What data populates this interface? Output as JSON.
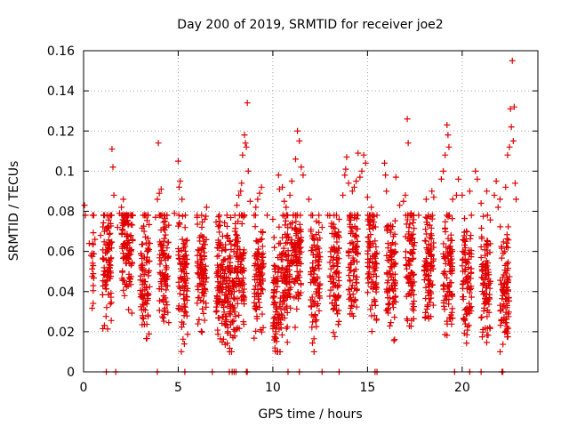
{
  "chart_data": {
    "type": "scatter",
    "title": "Day 200 of 2019, SRMTID for receiver joe2",
    "xlabel": "GPS time / hours",
    "ylabel": "SRMTID / TECUs",
    "xlim": [
      0,
      24
    ],
    "ylim": [
      0,
      0.16
    ],
    "xticks": [
      0,
      5,
      10,
      15,
      20
    ],
    "yticks": [
      0,
      0.02,
      0.04,
      0.06,
      0.08,
      0.1,
      0.12,
      0.14,
      0.16
    ],
    "xtick_labels": [
      "0",
      "5",
      "10",
      "15",
      "20"
    ],
    "ytick_labels": [
      "0",
      "0.02",
      "0.04",
      "0.06",
      "0.08",
      "0.1",
      "0.12",
      "0.14",
      "0.16"
    ],
    "grid": true,
    "marker": "+",
    "color": "#e00000",
    "series": [
      {
        "name": "SRMTID",
        "points": [
          [
            0.05,
            0.083
          ],
          [
            0.1,
            0.078
          ],
          [
            0.3,
            0.064
          ],
          [
            0.4,
            0.058
          ],
          [
            0.6,
            0.066
          ],
          [
            0.9,
            0.068
          ],
          [
            1.1,
            0.07
          ],
          [
            1.4,
            0.069
          ],
          [
            1.5,
            0.111
          ],
          [
            1.55,
            0.102
          ],
          [
            1.6,
            0.088
          ],
          [
            1.8,
            0.072
          ],
          [
            1.9,
            0.079
          ],
          [
            2.0,
            0.082
          ],
          [
            2.1,
            0.086
          ],
          [
            2.5,
            0.068
          ],
          [
            3.2,
            0.07
          ],
          [
            3.5,
            0.064
          ],
          [
            3.8,
            0.077
          ],
          [
            3.9,
            0.086
          ],
          [
            3.95,
            0.114
          ],
          [
            4.0,
            0.089
          ],
          [
            4.1,
            0.091
          ],
          [
            4.3,
            0.075
          ],
          [
            4.8,
            0.079
          ],
          [
            5.0,
            0.105
          ],
          [
            5.05,
            0.092
          ],
          [
            5.1,
            0.095
          ],
          [
            5.2,
            0.086
          ],
          [
            6.0,
            0.077
          ],
          [
            6.4,
            0.076
          ],
          [
            6.5,
            0.082
          ],
          [
            7.2,
            0.075
          ],
          [
            7.6,
            0.068
          ],
          [
            8.0,
            0.07
          ],
          [
            8.1,
            0.083
          ],
          [
            8.2,
            0.088
          ],
          [
            8.3,
            0.09
          ],
          [
            8.35,
            0.094
          ],
          [
            8.4,
            0.108
          ],
          [
            8.5,
            0.118
          ],
          [
            8.55,
            0.114
          ],
          [
            8.6,
            0.112
          ],
          [
            8.65,
            0.134
          ],
          [
            8.7,
            0.1
          ],
          [
            8.8,
            0.085
          ],
          [
            9.1,
            0.082
          ],
          [
            9.2,
            0.086
          ],
          [
            9.3,
            0.089
          ],
          [
            9.4,
            0.092
          ],
          [
            9.7,
            0.078
          ],
          [
            10.0,
            0.076
          ],
          [
            10.3,
            0.098
          ],
          [
            10.35,
            0.091
          ],
          [
            10.5,
            0.092
          ],
          [
            10.6,
            0.085
          ],
          [
            10.7,
            0.082
          ],
          [
            10.9,
            0.088
          ],
          [
            11.0,
            0.095
          ],
          [
            11.2,
            0.106
          ],
          [
            11.3,
            0.12
          ],
          [
            11.4,
            0.115
          ],
          [
            11.5,
            0.102
          ],
          [
            11.6,
            0.098
          ],
          [
            11.9,
            0.086
          ],
          [
            12.3,
            0.075
          ],
          [
            12.6,
            0.072
          ],
          [
            12.9,
            0.078
          ],
          [
            13.1,
            0.074
          ],
          [
            13.5,
            0.076
          ],
          [
            13.7,
            0.088
          ],
          [
            13.8,
            0.098
          ],
          [
            13.85,
            0.101
          ],
          [
            13.9,
            0.107
          ],
          [
            14.0,
            0.094
          ],
          [
            14.2,
            0.09
          ],
          [
            14.3,
            0.092
          ],
          [
            14.4,
            0.095
          ],
          [
            14.5,
            0.109
          ],
          [
            14.6,
            0.097
          ],
          [
            14.7,
            0.1
          ],
          [
            14.8,
            0.108
          ],
          [
            14.9,
            0.104
          ],
          [
            15.0,
            0.087
          ],
          [
            15.2,
            0.082
          ],
          [
            15.5,
            0.078
          ],
          [
            15.9,
            0.104
          ],
          [
            15.95,
            0.098
          ],
          [
            16.0,
            0.09
          ],
          [
            16.5,
            0.097
          ],
          [
            16.7,
            0.083
          ],
          [
            16.9,
            0.085
          ],
          [
            17.0,
            0.088
          ],
          [
            17.1,
            0.126
          ],
          [
            17.15,
            0.114
          ],
          [
            17.3,
            0.079
          ],
          [
            17.7,
            0.078
          ],
          [
            18.1,
            0.086
          ],
          [
            18.4,
            0.09
          ],
          [
            18.5,
            0.087
          ],
          [
            18.9,
            0.096
          ],
          [
            19.0,
            0.1
          ],
          [
            19.1,
            0.108
          ],
          [
            19.2,
            0.123
          ],
          [
            19.25,
            0.118
          ],
          [
            19.3,
            0.112
          ],
          [
            19.5,
            0.086
          ],
          [
            19.7,
            0.088
          ],
          [
            19.8,
            0.096
          ],
          [
            20.0,
            0.088
          ],
          [
            20.4,
            0.09
          ],
          [
            20.7,
            0.1
          ],
          [
            20.8,
            0.096
          ],
          [
            21.0,
            0.084
          ],
          [
            21.3,
            0.09
          ],
          [
            21.7,
            0.088
          ],
          [
            21.8,
            0.095
          ],
          [
            21.9,
            0.082
          ],
          [
            22.0,
            0.086
          ],
          [
            22.3,
            0.092
          ],
          [
            22.4,
            0.108
          ],
          [
            22.5,
            0.112
          ],
          [
            22.55,
            0.131
          ],
          [
            22.6,
            0.122
          ],
          [
            22.65,
            0.155
          ],
          [
            22.7,
            0.115
          ],
          [
            22.75,
            0.132
          ],
          [
            22.8,
            0.094
          ],
          [
            22.85,
            0.086
          ]
        ],
        "baseline_bands": [
          [
            0.45,
            0.55,
            0.06,
            0.028
          ],
          [
            1.0,
            1.5,
            0.055,
            0.03
          ],
          [
            2.0,
            2.6,
            0.062,
            0.026
          ],
          [
            3.0,
            3.5,
            0.05,
            0.03
          ],
          [
            4.0,
            4.5,
            0.055,
            0.028
          ],
          [
            5.0,
            5.5,
            0.048,
            0.03
          ],
          [
            6.0,
            6.5,
            0.05,
            0.026
          ],
          [
            7.0,
            7.5,
            0.046,
            0.03
          ],
          [
            7.5,
            8.0,
            0.04,
            0.032
          ],
          [
            8.0,
            8.5,
            0.056,
            0.03
          ],
          [
            9.0,
            9.5,
            0.05,
            0.026
          ],
          [
            10.0,
            10.5,
            0.038,
            0.03
          ],
          [
            10.5,
            11.0,
            0.05,
            0.03
          ],
          [
            11.0,
            11.5,
            0.058,
            0.026
          ],
          [
            12.0,
            12.5,
            0.046,
            0.03
          ],
          [
            13.0,
            13.5,
            0.052,
            0.03
          ],
          [
            14.0,
            14.5,
            0.058,
            0.03
          ],
          [
            15.0,
            15.5,
            0.054,
            0.03
          ],
          [
            16.0,
            16.5,
            0.05,
            0.028
          ],
          [
            17.0,
            17.5,
            0.056,
            0.03
          ],
          [
            18.0,
            18.5,
            0.054,
            0.03
          ],
          [
            19.0,
            19.5,
            0.05,
            0.028
          ],
          [
            20.0,
            20.5,
            0.048,
            0.03
          ],
          [
            21.0,
            21.5,
            0.046,
            0.03
          ],
          [
            22.0,
            22.5,
            0.042,
            0.03
          ]
        ],
        "zero_points": [
          1.2,
          1.7,
          3.9,
          5.35,
          6.8,
          7.7,
          7.85,
          7.95,
          8.05,
          8.6,
          8.65,
          10.8,
          11.4,
          12.6,
          13.5,
          15.4,
          15.5,
          19.6,
          20.4,
          21.0,
          22.1,
          22.15
        ]
      }
    ]
  }
}
